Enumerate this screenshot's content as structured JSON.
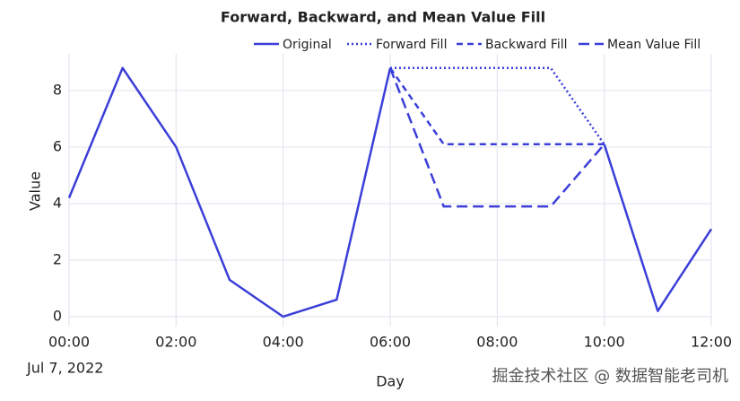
{
  "chart_data": {
    "type": "line",
    "title": "Forward, Backward, and Mean Value Fill",
    "x": [
      "00:00",
      null,
      "02:00",
      null,
      "04:00",
      null,
      "06:00",
      null,
      "08:00",
      null,
      "10:00",
      null,
      "12:00"
    ],
    "x_sublabel": "Jul 7, 2022",
    "xlabel": "Day",
    "ylabel": "Value",
    "ylim": [
      -0.35,
      9.3
    ],
    "yticks": [
      0,
      2,
      4,
      6,
      8
    ],
    "grid": true,
    "series": [
      {
        "name": "Original",
        "color": "#3b3fd8",
        "dash": "solid",
        "values": [
          4.2,
          8.8,
          6.0,
          1.3,
          0.0,
          0.6,
          8.8,
          null,
          null,
          null,
          6.1,
          0.2,
          3.1
        ]
      },
      {
        "name": "Forward Fill",
        "color": "#3b3fd8",
        "dash": "dot",
        "values": [
          null,
          null,
          null,
          null,
          null,
          null,
          8.8,
          8.8,
          8.8,
          8.8,
          6.1,
          null,
          null
        ]
      },
      {
        "name": "Backward Fill",
        "color": "#3b3fd8",
        "dash": "dash",
        "values": [
          null,
          null,
          null,
          null,
          null,
          null,
          8.8,
          6.1,
          6.1,
          6.1,
          6.1,
          null,
          null
        ]
      },
      {
        "name": "Mean Value Fill",
        "color": "#3b3fd8",
        "dash": "longdash",
        "values": [
          null,
          null,
          null,
          null,
          null,
          null,
          8.8,
          3.9,
          3.9,
          3.9,
          6.1,
          null,
          null
        ]
      }
    ],
    "watermark": "掘金技术社区 @ 数据智能老司机"
  }
}
